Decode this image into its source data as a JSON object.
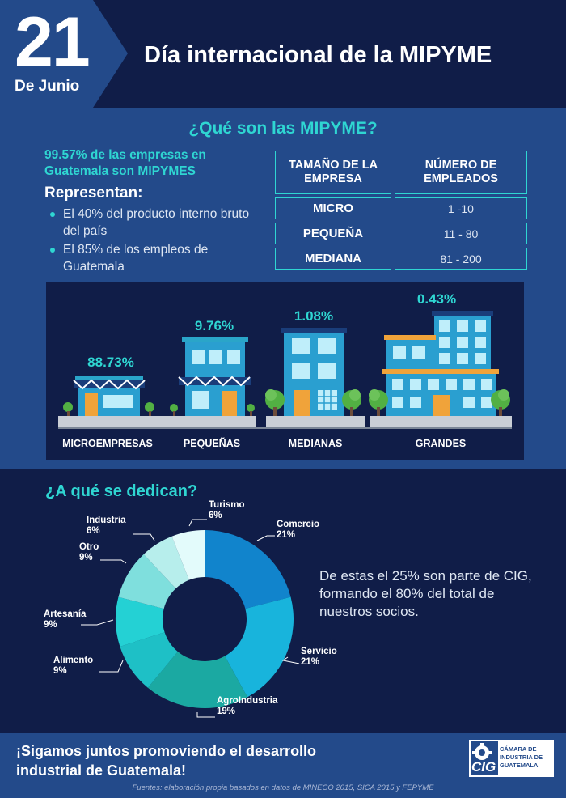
{
  "header": {
    "day": "21",
    "month": "De Junio",
    "title": "Día internacional de la MIPYME"
  },
  "what": {
    "title": "¿Qué son las MIPYME?",
    "headline": "99.57% de las empresas en Guatemala son MIPYMES",
    "represent_label": "Representan:",
    "bullets": [
      "El 40% del producto interno bruto del país",
      "El 85% de los empleos de Guatemala"
    ],
    "table": {
      "headers": [
        "TAMAÑO DE LA EMPRESA",
        "NÚMERO DE EMPLEADOS"
      ],
      "rows": [
        {
          "size": "MICRO",
          "employees": "1 -10"
        },
        {
          "size": "PEQUEÑA",
          "employees": "11 - 80"
        },
        {
          "size": "MEDIANA",
          "employees": "81 - 200"
        }
      ]
    }
  },
  "buildings": [
    {
      "percent": "88.73%",
      "label": "MICROEMPRESAS"
    },
    {
      "percent": "9.76%",
      "label": "PEQUEÑAS"
    },
    {
      "percent": "1.08%",
      "label": "MEDIANAS"
    },
    {
      "percent": "0.43%",
      "label": "GRANDES"
    }
  ],
  "sectors": {
    "title": "¿A qué se dedican?",
    "note": "De estas el 25% son parte de CIG, formando el 80% del total de nuestros socios."
  },
  "chart_data": {
    "type": "pie",
    "donut": true,
    "title": "¿A qué se dedican?",
    "categories": [
      "Comercio",
      "Servicio",
      "AgroIndustria",
      "Alimento",
      "Artesanía",
      "Otro",
      "Industria",
      "Turismo"
    ],
    "values": [
      21,
      21,
      19,
      9,
      9,
      9,
      6,
      6
    ],
    "value_labels": [
      "21%",
      "21%",
      "19%",
      "9%",
      "9%",
      "9%",
      "6%",
      "6%"
    ],
    "colors": [
      "#1184cc",
      "#18b4dc",
      "#1ba9a2",
      "#1ec0c6",
      "#24d1d4",
      "#7fdfdd",
      "#b7eeec",
      "#e3fbfb"
    ]
  },
  "footer": {
    "message": "¡Sigamos juntos promoviendo el desarrollo industrial de Guatemala!",
    "source": "Fuentes: elaboración propia basados en datos de MINECO 2015, SICA 2015 y FEPYME",
    "logo_letters": "CIG",
    "logo_text": "CÁMARA DE INDUSTRIA DE GUATEMALA"
  },
  "colors": {
    "header_bg": "#101d48",
    "section_bg": "#234a8a",
    "accent": "#2fd6d2"
  }
}
